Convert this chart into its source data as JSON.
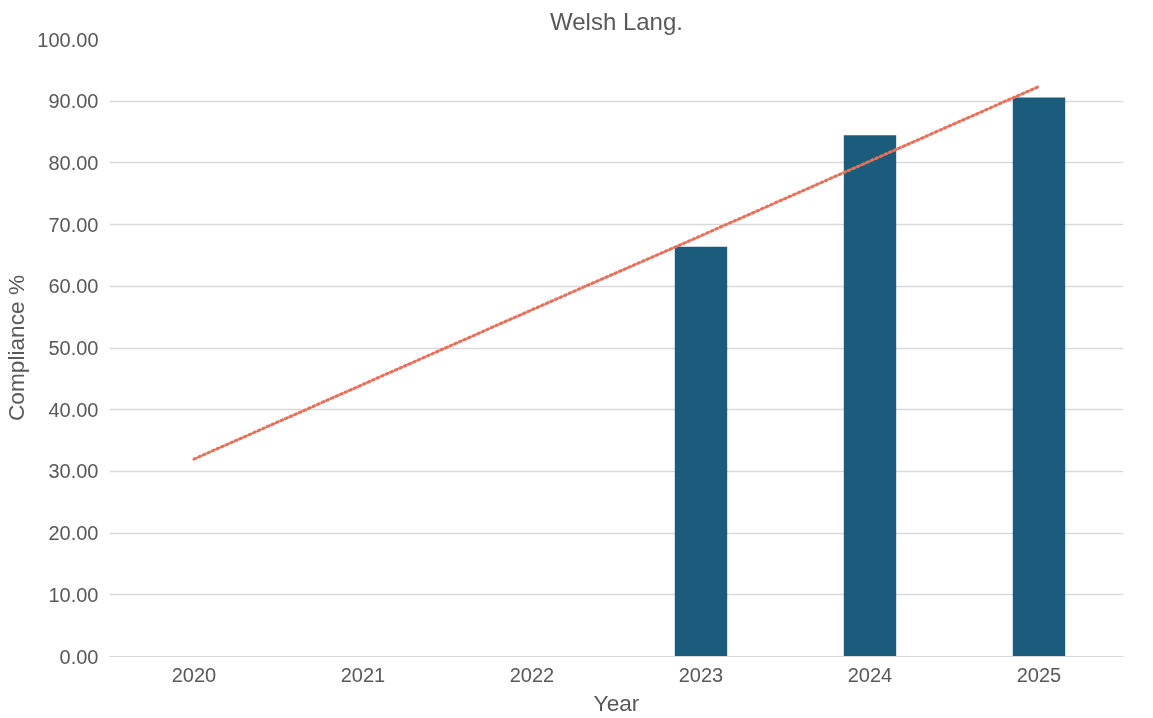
{
  "chart_data": {
    "type": "bar",
    "title": "Welsh Lang.",
    "xlabel": "Year",
    "ylabel": "Compliance %",
    "categories": [
      "2020",
      "2021",
      "2022",
      "2023",
      "2024",
      "2025"
    ],
    "series": [
      {
        "color": "#1b5c7c",
        "values": [
          null,
          null,
          null,
          66.4,
          84.5,
          90.6
        ]
      },
      {
        "type": "line",
        "color": "#e8705a",
        "line_style": "dotted",
        "marker": "none",
        "values": [
          32.0,
          44.1,
          56.2,
          68.2,
          80.3,
          92.4
        ]
      }
    ],
    "ylim": [
      0,
      100
    ],
    "yticks": [
      {
        "value": 0,
        "label": "0.00"
      },
      {
        "value": 10,
        "label": "10.00"
      },
      {
        "value": 20,
        "label": "20.00"
      },
      {
        "value": 30,
        "label": "30.00"
      },
      {
        "value": 40,
        "label": "40.00"
      },
      {
        "value": 50,
        "label": "50.00"
      },
      {
        "value": 60,
        "label": "60.00"
      },
      {
        "value": 70,
        "label": "70.00"
      },
      {
        "value": 80,
        "label": "80.00"
      },
      {
        "value": 90,
        "label": "90.00"
      },
      {
        "value": 100,
        "label": "100.00"
      }
    ],
    "grid": "y"
  }
}
